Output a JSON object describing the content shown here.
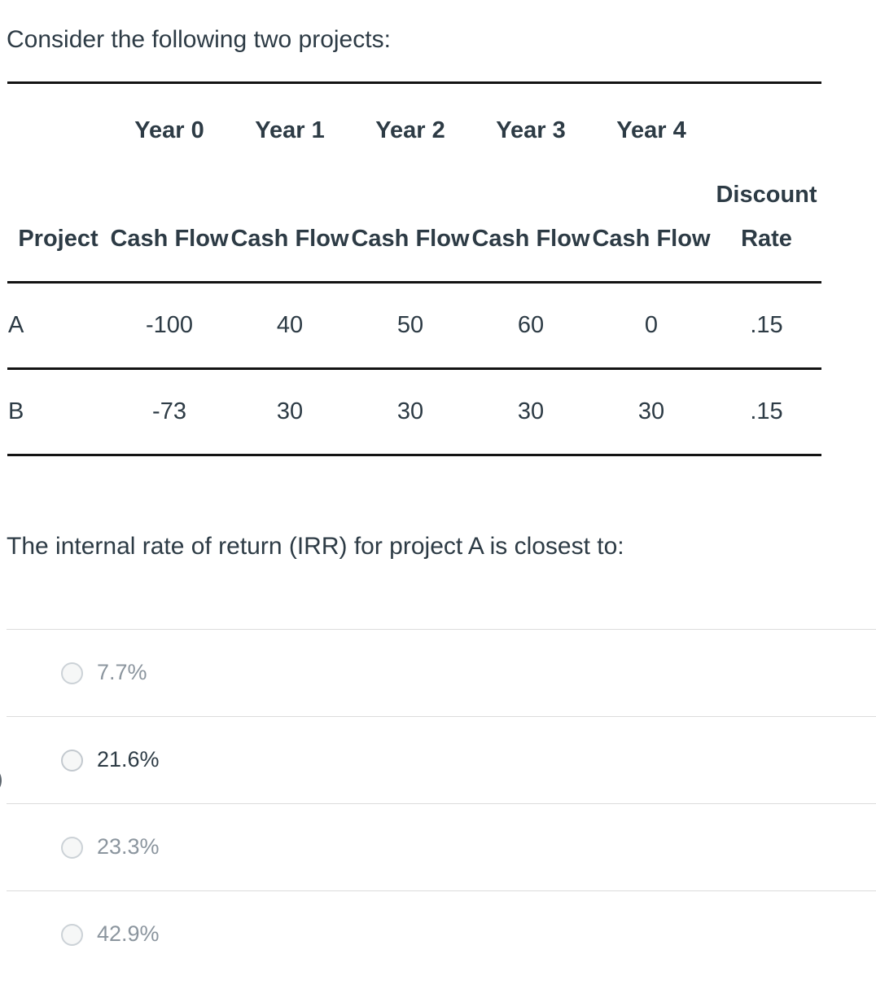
{
  "intro": "Consider the following two projects:",
  "table": {
    "project_header": "Project",
    "year_headers": [
      "Year 0",
      "Year 1",
      "Year 2",
      "Year 3",
      "Year 4"
    ],
    "cash_flow_header": "Cash Flow",
    "discount_rate_header": "Discount Rate",
    "rows": [
      {
        "project": "A",
        "values": [
          "-100",
          "40",
          "50",
          "60",
          "0",
          ".15"
        ]
      },
      {
        "project": "B",
        "values": [
          "-73",
          "30",
          "30",
          "30",
          "30",
          ".15"
        ]
      }
    ]
  },
  "question": "The internal rate of return (IRR) for project A is closest to:",
  "options": [
    {
      "label": "7.7%",
      "emphasized": false
    },
    {
      "label": "21.6%",
      "emphasized": true
    },
    {
      "label": "23.3%",
      "emphasized": false
    },
    {
      "label": "42.9%",
      "emphasized": false
    }
  ],
  "colors": {
    "ink": "#2d3b45",
    "muted_option_text": "#8b959e",
    "table_border": "#131313",
    "option_divider": "#dcdcdc",
    "radio_border": "#ccd2d7",
    "radio_fill": "#f6f7f7"
  }
}
